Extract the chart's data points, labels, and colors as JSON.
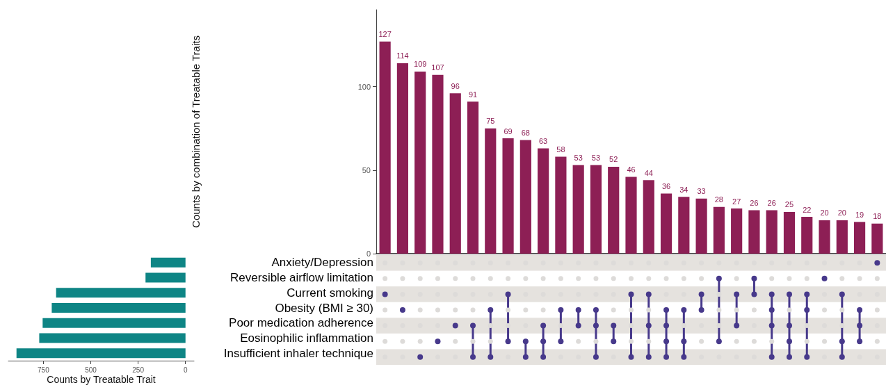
{
  "chart_data": [
    {
      "type": "bar",
      "orientation": "horizontal",
      "xlabel": "Counts by Treatable Trait",
      "categories": [
        "Anxiety/Depression",
        "Reversible airflow limitation",
        "Current smoking",
        "Obesity (BMI ≥ 30)",
        "Poor medication adherence",
        "Eosinophilic inflammation",
        "Insufficient inhaler technique"
      ],
      "values": [
        183,
        211,
        683,
        706,
        754,
        772,
        892
      ],
      "color": "#0e8585",
      "xlim": [
        935,
        -45
      ],
      "xticks": [
        750,
        500,
        250,
        0
      ],
      "grid": false
    },
    {
      "type": "bar",
      "ylabel": "Counts by combination of Treatable Traits",
      "categories": [
        null,
        null,
        null,
        null,
        null,
        null,
        null,
        null,
        null,
        null,
        null,
        null,
        null,
        null,
        null,
        null,
        null,
        null,
        null,
        null,
        null,
        null,
        null,
        null,
        null,
        null,
        null,
        null,
        null
      ],
      "values": [
        127,
        114,
        109,
        107,
        96,
        91,
        75,
        69,
        68,
        63,
        58,
        53,
        53,
        52,
        46,
        44,
        36,
        34,
        33,
        28,
        27,
        26,
        26,
        25,
        22,
        20,
        20,
        19,
        18
      ],
      "color": "#8d1f55",
      "ylim": [
        0,
        146
      ],
      "yticks": [
        0,
        50,
        100
      ],
      "data_labels": true,
      "tick_labels": "y",
      "grid": false
    }
  ]
}
